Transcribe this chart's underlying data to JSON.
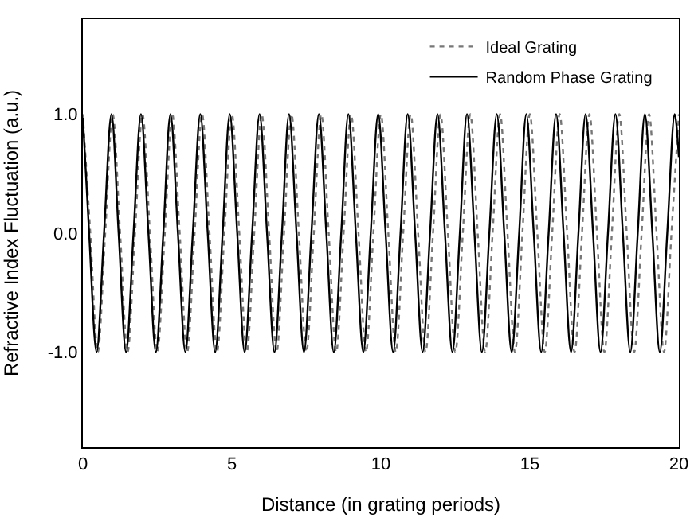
{
  "chart_data": {
    "type": "line",
    "xlabel": "Distance (in grating periods)",
    "ylabel": "Refractive Index Fluctuation (a.u.)",
    "xlim": [
      0,
      20
    ],
    "xticks": [
      0,
      5,
      10,
      15,
      20
    ],
    "ylim": [
      -1.8,
      1.8
    ],
    "yticks": [
      {
        "value": -1,
        "label": "-1.0"
      },
      {
        "value": 0,
        "label": "0.0"
      },
      {
        "value": 1,
        "label": "1.0"
      }
    ],
    "legend": "top right",
    "marker": "none",
    "series": [
      {
        "name": "Ideal Grating",
        "color": "#777777",
        "line_style": "dotted",
        "x": [
          0,
          0.25,
          0.5,
          0.75,
          1,
          1.25,
          1.5,
          1.75,
          2,
          2.25,
          2.5,
          2.75,
          3,
          3.25,
          3.5,
          3.75,
          4,
          4.25,
          4.5,
          4.75,
          5,
          5.25,
          5.5,
          5.75,
          6,
          6.25,
          6.5,
          6.75,
          7,
          7.25,
          7.5,
          7.75,
          8,
          8.25,
          8.5,
          8.75,
          9,
          9.25,
          9.5,
          9.75,
          10,
          10.25,
          10.5,
          10.75,
          11,
          11.25,
          11.5,
          11.75,
          12,
          12.25,
          12.5,
          12.75,
          13,
          13.25,
          13.5,
          13.75,
          14,
          14.25,
          14.5,
          14.75,
          15,
          15.25,
          15.5,
          15.75,
          16,
          16.25,
          16.5,
          16.75,
          17,
          17.25,
          17.5,
          17.75,
          18,
          18.25,
          18.5,
          18.75,
          19,
          19.25,
          19.5,
          19.75,
          20
        ],
        "values": [
          1,
          0,
          -1,
          0,
          1,
          0,
          -1,
          0,
          1,
          0,
          -1,
          0,
          1,
          0,
          -1,
          0,
          1,
          0,
          -1,
          0,
          1,
          0,
          -1,
          0,
          1,
          0,
          -1,
          0,
          1,
          0,
          -1,
          0,
          1,
          0,
          -1,
          0,
          1,
          0,
          -1,
          0,
          1,
          0,
          -1,
          0,
          1,
          0,
          -1,
          0,
          1,
          0,
          -1,
          0,
          1,
          0,
          -1,
          0,
          1,
          0,
          -1,
          0,
          1,
          0,
          -1,
          0,
          1,
          0,
          -1,
          0,
          1,
          0,
          -1,
          0,
          1,
          0,
          -1,
          0,
          1,
          0,
          -1,
          0,
          1
        ]
      },
      {
        "name": "Random Phase Grating",
        "color": "#000000",
        "line_style": "solid",
        "x": [
          0,
          0.21,
          0.46,
          0.71,
          0.96,
          1.2,
          1.45,
          1.7,
          1.95,
          2.2,
          2.45,
          2.7,
          2.94,
          3.19,
          3.44,
          3.69,
          3.94,
          4.19,
          4.44,
          4.69,
          4.93,
          5.18,
          5.43,
          5.68,
          5.93,
          6.18,
          6.43,
          6.68,
          6.92,
          7.17,
          7.42,
          7.67,
          7.92,
          8.17,
          8.42,
          8.67,
          8.91,
          9.16,
          9.41,
          9.66,
          9.91,
          10.16,
          10.41,
          10.66,
          10.9,
          11.15,
          11.4,
          11.65,
          11.9,
          12.15,
          12.4,
          12.65,
          12.89,
          13.14,
          13.39,
          13.64,
          13.89,
          14.14,
          14.39,
          14.64,
          14.88,
          15.13,
          15.38,
          15.63,
          15.88,
          16.13,
          16.38,
          16.63,
          16.87,
          17.12,
          17.37,
          17.62,
          17.87,
          18.12,
          18.37,
          18.62,
          18.86,
          19.11,
          19.36,
          19.61,
          19.86,
          20
        ],
        "values": [
          0.97,
          0,
          -1,
          0,
          1,
          0,
          -1,
          0,
          1,
          0,
          -1,
          0,
          1,
          0,
          -1,
          0,
          1,
          0,
          -1,
          0,
          1,
          0,
          -1,
          0,
          1,
          0,
          -1,
          0,
          1,
          0,
          -1,
          0,
          1,
          0,
          -1,
          0,
          1,
          0,
          -1,
          0,
          1,
          0,
          -1,
          0,
          1,
          0,
          -1,
          0,
          1,
          0,
          -1,
          0,
          1,
          0,
          -1,
          0,
          1,
          0,
          -1,
          0,
          1,
          0,
          -1,
          0,
          1,
          0,
          -1,
          0,
          1,
          0,
          -1,
          0,
          1,
          0,
          -1,
          0,
          1,
          0,
          -1,
          0,
          1,
          0.64
        ]
      }
    ]
  }
}
